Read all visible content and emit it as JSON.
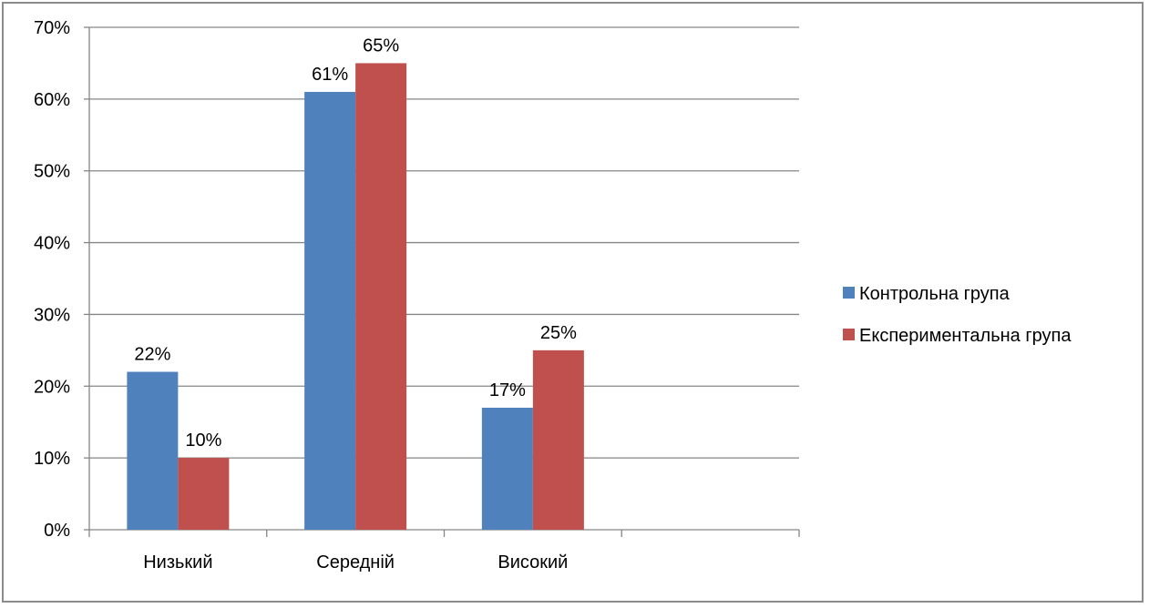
{
  "chart_data": {
    "type": "bar",
    "categories": [
      "Низький",
      "Середній",
      "Високий",
      ""
    ],
    "series": [
      {
        "name": "Контрольна група",
        "values": [
          22,
          61,
          17,
          null
        ],
        "labels": [
          "22%",
          "61%",
          "17%",
          ""
        ],
        "color": "#4f81bd"
      },
      {
        "name": "Експериментальна група",
        "values": [
          10,
          65,
          25,
          null
        ],
        "labels": [
          "10%",
          "65%",
          "25%",
          ""
        ],
        "color": "#c0504d"
      }
    ],
    "y_ticks": [
      "0%",
      "10%",
      "20%",
      "30%",
      "40%",
      "50%",
      "60%",
      "70%"
    ],
    "ylim": [
      0,
      70
    ],
    "grid": true,
    "legend_position": "right",
    "title": "",
    "xlabel": "",
    "ylabel": ""
  }
}
